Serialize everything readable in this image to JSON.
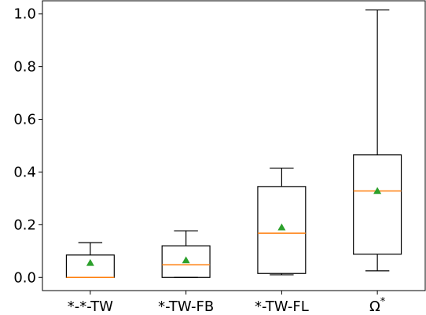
{
  "chart_data": {
    "type": "box",
    "title": "",
    "xlabel": "",
    "ylabel": "",
    "ylim": [
      -0.05,
      1.05
    ],
    "y_ticks": [
      0.0,
      0.2,
      0.4,
      0.6,
      0.8,
      1.0
    ],
    "y_tick_labels": [
      "0.0",
      "0.2",
      "0.4",
      "0.6",
      "0.8",
      "1.0"
    ],
    "grid": false,
    "categories": [
      "*-*-TW",
      "*-TW-FB",
      "*-TW-FL",
      "Ω*"
    ],
    "boxes": [
      {
        "min": 0.0,
        "q1": 0.0,
        "median": 0.0,
        "q3": 0.085,
        "max": 0.132,
        "mean": 0.055
      },
      {
        "min": 0.0,
        "q1": 0.0,
        "median": 0.048,
        "q3": 0.12,
        "max": 0.177,
        "mean": 0.065
      },
      {
        "min": 0.01,
        "q1": 0.015,
        "median": 0.168,
        "q3": 0.345,
        "max": 0.415,
        "mean": 0.19
      },
      {
        "min": 0.025,
        "q1": 0.088,
        "median": 0.328,
        "q3": 0.465,
        "max": 1.015,
        "mean": 0.328
      }
    ],
    "colors": {
      "median": "#ff7f0e",
      "mean_marker": "#2ca02c",
      "box": "#000000"
    }
  }
}
